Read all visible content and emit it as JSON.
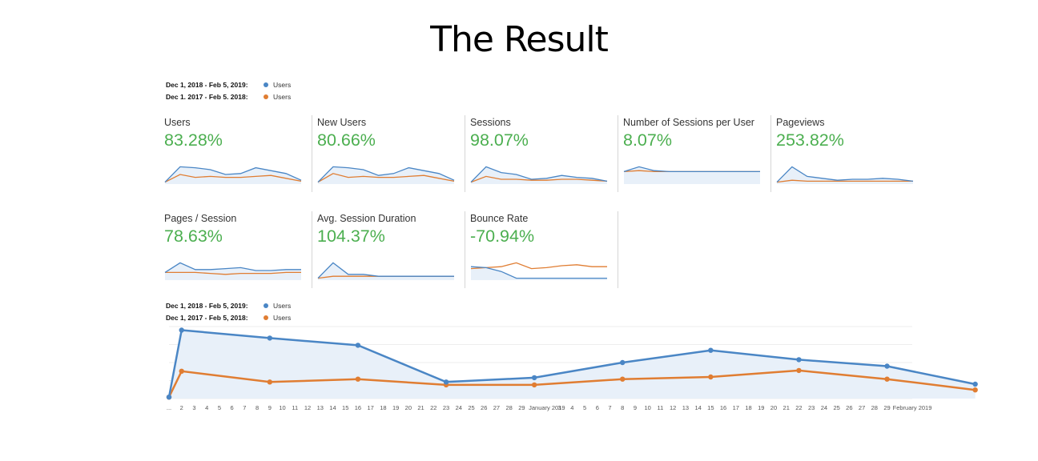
{
  "page_title": "The Result",
  "colors": {
    "current": "#4a86c5",
    "previous": "#e07d32",
    "positive": "#4caf50"
  },
  "legend_top": {
    "rows": [
      {
        "range": "Dec 1, 2018 - Feb 5, 2019:",
        "metric": "Users",
        "color": "#4a86c5"
      },
      {
        "range": "Dec 1. 2017 - Feb 5. 2018:",
        "metric": "Users",
        "color": "#e07d32"
      }
    ]
  },
  "legend_bottom": {
    "rows": [
      {
        "range": "Dec 1, 2018 - Feb 5, 2019:",
        "metric": "Users",
        "color": "#4a86c5"
      },
      {
        "range": "Dec 1, 2017 - Feb 5, 2018:",
        "metric": "Users",
        "color": "#e07d32"
      }
    ]
  },
  "metrics": [
    {
      "label": "Users",
      "value": "83.28%",
      "current": [
        2,
        18,
        17,
        15,
        10,
        11,
        17,
        14,
        11,
        4
      ],
      "previous": [
        2,
        10,
        7,
        8,
        7,
        7,
        8,
        9,
        6,
        3
      ],
      "fill": true
    },
    {
      "label": "New Users",
      "value": "80.66%",
      "current": [
        2,
        18,
        17,
        15,
        9,
        11,
        17,
        14,
        11,
        4
      ],
      "previous": [
        2,
        11,
        7,
        8,
        7,
        7,
        8,
        9,
        6,
        3
      ],
      "fill": true
    },
    {
      "label": "Sessions",
      "value": "98.07%",
      "current": [
        2,
        18,
        12,
        10,
        5,
        6,
        9,
        7,
        6,
        3
      ],
      "previous": [
        2,
        8,
        5,
        5,
        4,
        4,
        5,
        5,
        4,
        3
      ],
      "fill": true
    },
    {
      "label": "Number of Sessions per User",
      "value": "8.07%",
      "current": [
        13,
        18,
        14,
        13,
        13,
        13,
        13,
        13,
        13,
        13
      ],
      "previous": [
        13,
        14,
        13,
        13,
        13,
        13,
        13,
        13,
        13,
        13
      ],
      "fill": true
    },
    {
      "label": "Pageviews",
      "value": "253.82%",
      "current": [
        2,
        18,
        8,
        6,
        4,
        5,
        5,
        6,
        5,
        3
      ],
      "previous": [
        2,
        4,
        3,
        3,
        3,
        3,
        3,
        3,
        3,
        3
      ],
      "fill": true
    },
    {
      "label": "Pages / Session",
      "value": "78.63%",
      "current": [
        8,
        18,
        11,
        11,
        12,
        13,
        10,
        10,
        11,
        11
      ],
      "previous": [
        8,
        8,
        8,
        7,
        6,
        7,
        7,
        7,
        8,
        8
      ],
      "fill": true
    },
    {
      "label": "Avg. Session Duration",
      "value": "104.37%",
      "current": [
        2,
        18,
        6,
        6,
        4,
        4,
        4,
        4,
        4,
        4
      ],
      "previous": [
        2,
        4,
        4,
        4,
        4,
        4,
        4,
        4,
        4,
        4
      ],
      "fill": true
    },
    {
      "label": "Bounce Rate",
      "value": "-70.94%",
      "current": [
        14,
        13,
        9,
        2,
        2,
        2,
        2,
        2,
        2,
        2
      ],
      "previous": [
        12,
        13,
        14,
        18,
        12,
        13,
        15,
        16,
        14,
        14
      ],
      "fill": true
    }
  ],
  "chart_data": {
    "type": "line",
    "title": "",
    "xlabel": "",
    "ylabel": "",
    "x_labels": [
      "...",
      "2",
      "3",
      "4",
      "5",
      "6",
      "7",
      "8",
      "9",
      "10",
      "11",
      "12",
      "13",
      "14",
      "15",
      "16",
      "17",
      "18",
      "19",
      "20",
      "21",
      "22",
      "23",
      "24",
      "25",
      "26",
      "27",
      "28",
      "29",
      "",
      "January 2019",
      "3",
      "4",
      "5",
      "6",
      "7",
      "8",
      "9",
      "10",
      "11",
      "12",
      "13",
      "14",
      "15",
      "16",
      "17",
      "18",
      "19",
      "20",
      "21",
      "22",
      "23",
      "24",
      "25",
      "26",
      "27",
      "28",
      "29",
      "",
      "February 2019"
    ],
    "series": [
      {
        "name": "Users",
        "period": "Dec 1, 2018 - Feb 5, 2019",
        "points": [
          [
            0,
            2
          ],
          [
            1,
            95
          ],
          [
            8,
            84
          ],
          [
            15,
            74
          ],
          [
            22,
            23
          ],
          [
            29,
            29
          ],
          [
            36,
            50
          ],
          [
            43,
            67
          ],
          [
            50,
            54
          ],
          [
            57,
            45
          ],
          [
            64,
            20
          ]
        ]
      },
      {
        "name": "Users",
        "period": "Dec 1, 2017 - Feb 5, 2018",
        "points": [
          [
            0,
            2
          ],
          [
            1,
            38
          ],
          [
            8,
            23
          ],
          [
            15,
            27
          ],
          [
            22,
            19
          ],
          [
            29,
            19
          ],
          [
            36,
            27
          ],
          [
            43,
            30
          ],
          [
            50,
            39
          ],
          [
            57,
            27
          ],
          [
            64,
            12
          ]
        ]
      }
    ],
    "ylim": [
      0,
      100
    ],
    "grid": true
  }
}
